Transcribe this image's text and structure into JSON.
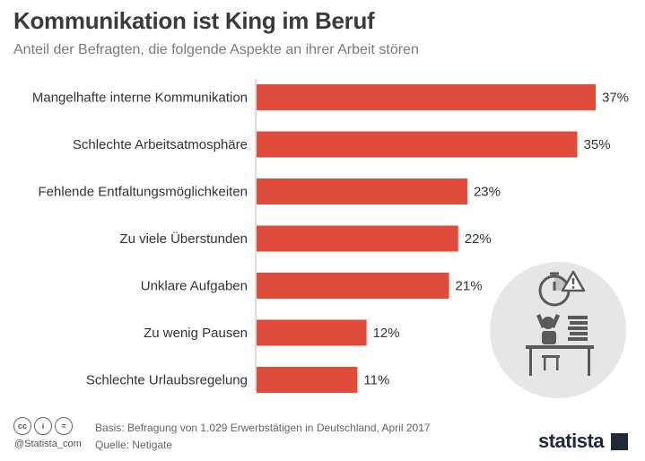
{
  "header": {
    "title": "Kommunikation ist King im Beruf",
    "subtitle": "Anteil der Befragten, die folgende Aspekte an ihrer Arbeit stören"
  },
  "chart_data": {
    "type": "bar",
    "orientation": "horizontal",
    "categories": [
      "Mangelhafte interne Kommunikation",
      "Schlechte Arbeitsatmosphäre",
      "Fehlende Entfaltungsmöglichkeiten",
      "Zu viele Überstunden",
      "Unklare Aufgaben",
      "Zu wenig Pausen",
      "Schlechte Urlaubsregelung"
    ],
    "values": [
      37,
      35,
      23,
      22,
      21,
      12,
      11
    ],
    "value_labels": [
      "37%",
      "35%",
      "23%",
      "22%",
      "21%",
      "12%",
      "11%"
    ],
    "title": "Kommunikation ist King im Beruf",
    "subtitle": "Anteil der Befragten, die folgende Aspekte an ihrer Arbeit stören",
    "xlim": [
      0,
      37
    ],
    "grid": false,
    "legend": "none",
    "bar_color": "#e04b3a"
  },
  "footer": {
    "license_icons": [
      "cc-icon",
      "by-icon",
      "nd-icon"
    ],
    "license_glyphs": [
      "cc",
      "i",
      "="
    ],
    "handle": "@Statista_com",
    "basis": "Basis: Befragung von 1.029 Erwerbstätigen in Deutschland, April 2017",
    "source": "Quelle: Netigate",
    "logo": "statista"
  },
  "colors": {
    "bar": "#e04b3a",
    "illustration_bg": "#e6e6e6",
    "illustration_fg": "#5a5a5a"
  }
}
